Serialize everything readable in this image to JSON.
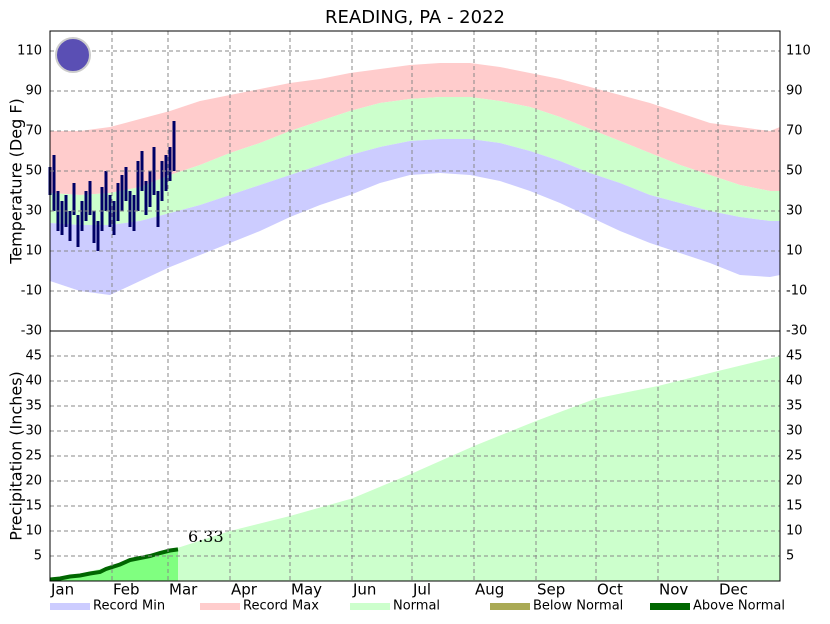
{
  "chart_data": [
    {
      "type": "band",
      "title": "READING, PA - 2022",
      "y_label": "Temperature (Deg F)",
      "xlim": [
        0,
        365
      ],
      "ylim": [
        -30,
        120
      ],
      "yticks": [
        -30,
        -10,
        10,
        30,
        50,
        70,
        90,
        110
      ],
      "grid": true,
      "x": [
        0,
        15,
        30,
        45,
        60,
        75,
        90,
        105,
        120,
        135,
        150,
        165,
        180,
        195,
        210,
        225,
        240,
        255,
        270,
        285,
        300,
        315,
        330,
        345,
        360,
        365
      ],
      "series": [
        {
          "name": "Record Max",
          "color": "#ffcccc",
          "values": [
            70,
            70,
            72,
            76,
            80,
            85,
            88,
            91,
            94,
            96,
            99,
            101,
            103,
            104,
            104,
            102,
            99,
            96,
            92,
            88,
            84,
            79,
            74,
            72,
            70,
            72
          ]
        },
        {
          "name": "Normal",
          "color": "#ccffcc",
          "high": [
            39,
            38,
            39,
            42,
            48,
            53,
            59,
            64,
            70,
            75,
            80,
            84,
            86,
            87,
            87,
            85,
            82,
            77,
            71,
            65,
            59,
            53,
            48,
            43,
            40,
            40
          ],
          "low": [
            24,
            23,
            23,
            25,
            29,
            33,
            38,
            43,
            48,
            53,
            58,
            62,
            65,
            66,
            66,
            64,
            60,
            55,
            49,
            44,
            38,
            34,
            30,
            27,
            25,
            25
          ]
        },
        {
          "name": "Record Min",
          "color": "#ccccff",
          "values": [
            -5,
            -10,
            -12,
            -5,
            2,
            8,
            14,
            20,
            27,
            33,
            38,
            44,
            48,
            49,
            48,
            45,
            40,
            34,
            27,
            20,
            14,
            9,
            4,
            -2,
            -3,
            -2
          ]
        }
      ],
      "observed": {
        "color": "#000066",
        "x": [
          0,
          2,
          4,
          6,
          8,
          10,
          12,
          14,
          16,
          18,
          20,
          22,
          24,
          26,
          28,
          30,
          32,
          34,
          36,
          38,
          40,
          42,
          44,
          46,
          48,
          50,
          52,
          54,
          56,
          58,
          60,
          62
        ],
        "high": [
          52,
          58,
          40,
          35,
          38,
          30,
          44,
          28,
          35,
          40,
          45,
          30,
          25,
          42,
          50,
          38,
          35,
          44,
          48,
          52,
          40,
          38,
          55,
          60,
          45,
          50,
          62,
          40,
          55,
          58,
          62,
          75
        ],
        "low": [
          38,
          30,
          20,
          18,
          22,
          15,
          28,
          12,
          20,
          25,
          28,
          14,
          10,
          20,
          30,
          22,
          18,
          25,
          30,
          35,
          22,
          20,
          30,
          40,
          28,
          32,
          38,
          22,
          35,
          40,
          45,
          50
        ]
      }
    },
    {
      "type": "cumulative-area",
      "y_label": "Precipitation (Inches)",
      "xlim": [
        0,
        365
      ],
      "ylim": [
        0,
        50
      ],
      "yticks": [
        5,
        10,
        15,
        20,
        25,
        30,
        35,
        40,
        45
      ],
      "xticks": [
        {
          "value": 0,
          "label": "Jan"
        },
        {
          "value": 31,
          "label": "Feb"
        },
        {
          "value": 59,
          "label": "Mar"
        },
        {
          "value": 90,
          "label": "Apr"
        },
        {
          "value": 120,
          "label": "May"
        },
        {
          "value": 151,
          "label": "Jun"
        },
        {
          "value": 181,
          "label": "Jul"
        },
        {
          "value": 212,
          "label": "Aug"
        },
        {
          "value": 243,
          "label": "Sep"
        },
        {
          "value": 273,
          "label": "Oct"
        },
        {
          "value": 304,
          "label": "Nov"
        },
        {
          "value": 334,
          "label": "Dec"
        }
      ],
      "grid": true,
      "normal": {
        "color": "#ccffcc",
        "x": [
          0,
          31,
          59,
          90,
          120,
          151,
          181,
          212,
          243,
          273,
          304,
          334,
          365
        ],
        "values": [
          0,
          3,
          6,
          10,
          13,
          16.5,
          21.5,
          27,
          32,
          36.5,
          39,
          42,
          45
        ]
      },
      "observed": {
        "color": "#80ff80",
        "x": [
          0,
          5,
          10,
          15,
          20,
          25,
          28,
          35,
          40,
          45,
          50,
          55,
          60,
          64
        ],
        "values": [
          0.3,
          0.5,
          0.9,
          1.1,
          1.5,
          1.8,
          2.4,
          3.3,
          4.2,
          4.6,
          5.0,
          5.6,
          6.1,
          6.33
        ]
      },
      "series": [
        {
          "name": "Below Normal",
          "color": "#aaaa55"
        },
        {
          "name": "Above Normal",
          "color": "#006600"
        }
      ]
    }
  ]
}
